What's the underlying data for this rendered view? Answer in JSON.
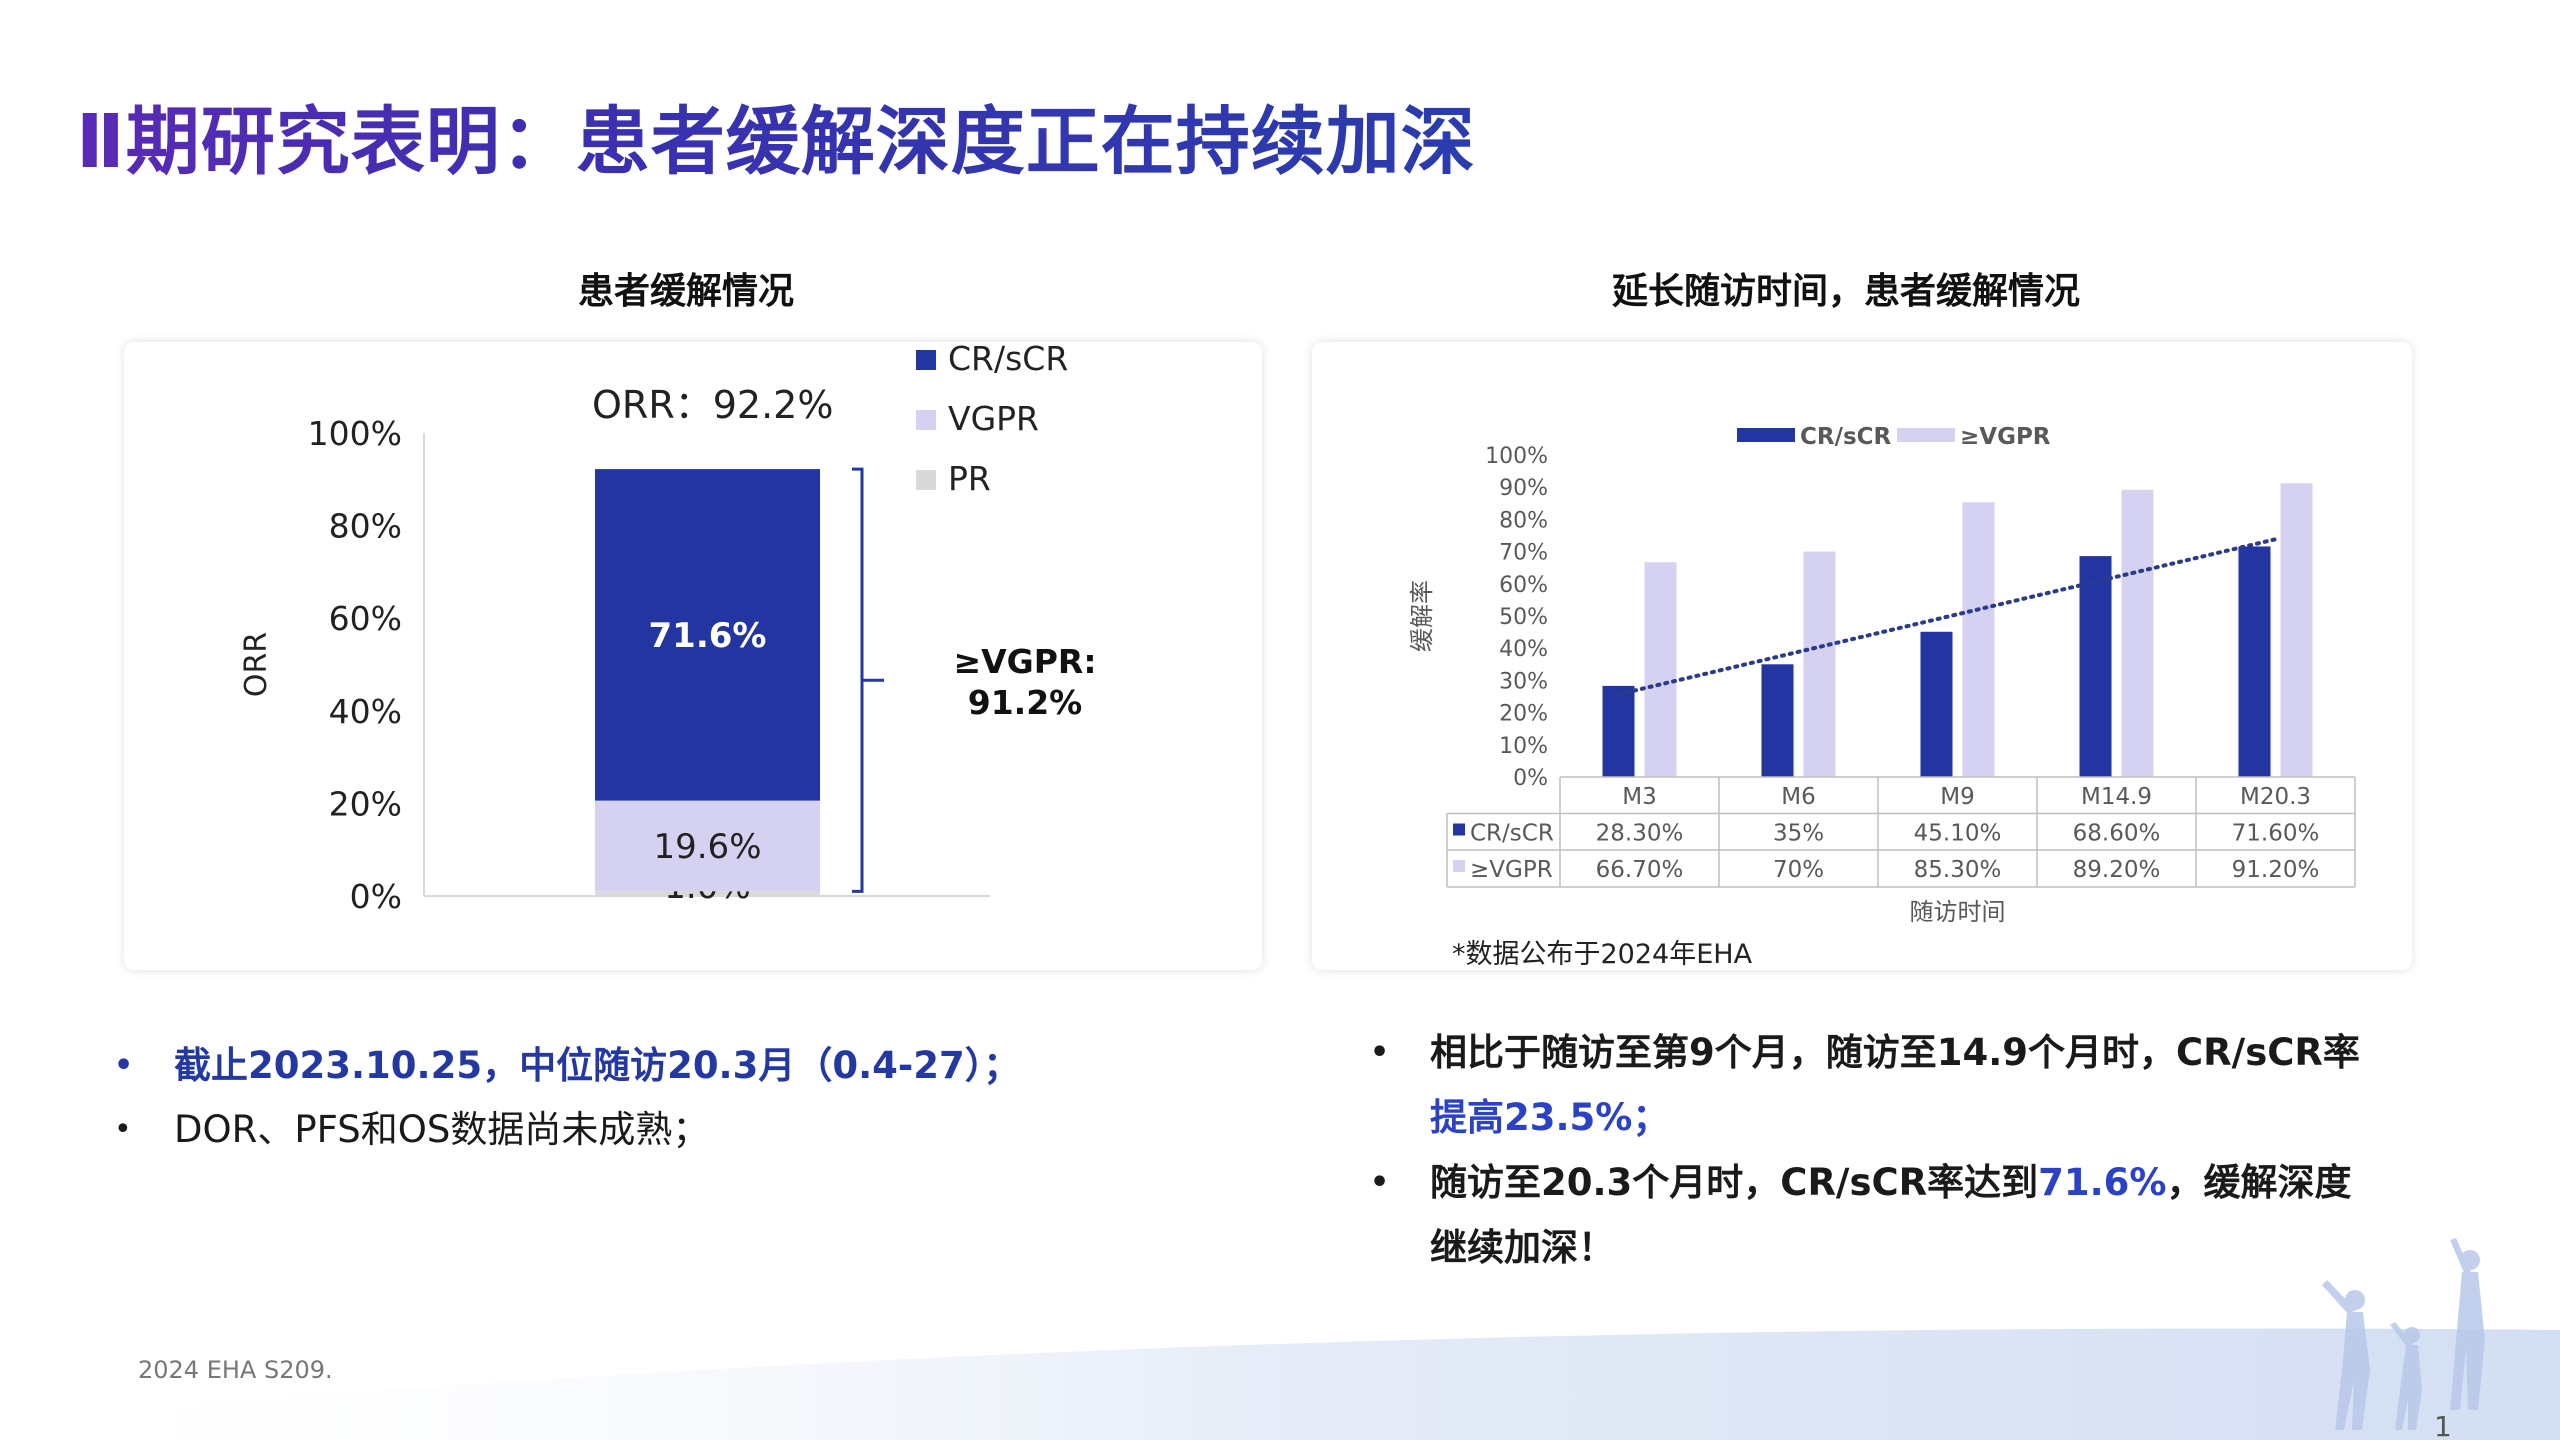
{
  "slide": {
    "title": "Ⅱ期研究表明：患者缓解深度正在持续加深",
    "left_panel_title": "患者缓解情况",
    "right_panel_title": "延长随访时间，患者缓解情况",
    "footnote": "2024 EHA S209.",
    "page_number": "1",
    "source_note": "*数据公布于2024年EHA",
    "colors": {
      "title_gradient_start": "#5a2ab6",
      "title_gradient_end": "#2a3cae",
      "cr_blue": "#2235a0",
      "vgpr_lavender": "#d4d2f0",
      "pr_gray": "#d9d9d9",
      "highlight_blue": "#2b42c6"
    }
  },
  "left_bullets": [
    {
      "text": "截止2023.10.25，中位随访20.3月（0.4-27）；",
      "style": "blue-bold"
    },
    {
      "text": "DOR、PFS和OS数据尚未成熟；",
      "style": "normal"
    }
  ],
  "right_bullets": {
    "b1_part1": "相比于随访至第9个月，随访至14.9个月时，CR/sCR率",
    "b1_highlight": "提高23.5%；",
    "b2_part1": "随访至20.3个月时，CR/sCR率达到",
    "b2_highlight": "71.6%",
    "b2_part2": "，缓解深度继续加深！"
  },
  "chart_data": [
    {
      "type": "bar",
      "stacked": true,
      "title": "",
      "orr_label": "ORR：92.2%",
      "ylabel": "ORR",
      "ylim": [
        0,
        100
      ],
      "yticks": [
        "0%",
        "20%",
        "40%",
        "60%",
        "80%",
        "100%"
      ],
      "series": [
        {
          "name": "PR",
          "values": [
            1.0
          ],
          "label": "1.0%",
          "color": "#d9d9d9"
        },
        {
          "name": "VGPR",
          "values": [
            19.6
          ],
          "label": "19.6%",
          "color": "#d4d2f0"
        },
        {
          "name": "CR/sCR",
          "values": [
            71.6
          ],
          "label": "71.6%",
          "color": "#2235a0"
        }
      ],
      "legend": [
        "CR/sCR",
        "VGPR",
        "PR"
      ],
      "legend_position": "top-right",
      "bracket_label_line1": "≥VGPR:",
      "bracket_label_line2": "91.2%"
    },
    {
      "type": "bar",
      "title": "",
      "xlabel": "随访时间",
      "ylabel": "缓解率",
      "ylim": [
        0,
        100
      ],
      "yticks": [
        "0%",
        "10%",
        "20%",
        "30%",
        "40%",
        "50%",
        "60%",
        "70%",
        "80%",
        "90%",
        "100%"
      ],
      "categories": [
        "M3",
        "M6",
        "M9",
        "M14.9",
        "M20.3"
      ],
      "series": [
        {
          "name": "CR/sCR",
          "values": [
            28.3,
            35,
            45.1,
            68.6,
            71.6
          ],
          "labels": [
            "28.30%",
            "35%",
            "45.10%",
            "68.60%",
            "71.60%"
          ],
          "color": "#2235a0"
        },
        {
          "name": "≥VGPR",
          "values": [
            66.7,
            70,
            85.3,
            89.2,
            91.2
          ],
          "labels": [
            "66.70%",
            "70%",
            "85.30%",
            "89.20%",
            "91.20%"
          ],
          "color": "#d4d2f0"
        }
      ],
      "trendline": {
        "series": "CR/sCR",
        "style": "dotted"
      },
      "legend_position": "top",
      "data_table": true
    }
  ]
}
